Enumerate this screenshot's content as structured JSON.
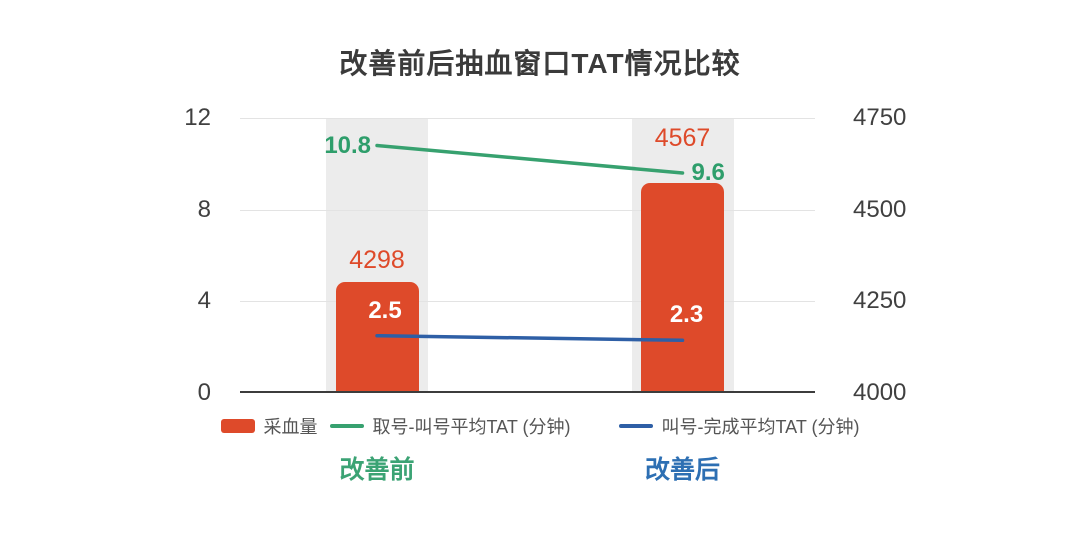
{
  "title": "改善前后抽血窗口TAT情况比较",
  "legend": [
    {
      "label": "采血量",
      "type": "bar",
      "color": "#de4a2a"
    },
    {
      "label": "取号-叫号平均TAT (分钟)",
      "type": "line",
      "color": "#37a16f"
    },
    {
      "label": "叫号-完成平均TAT (分钟)",
      "type": "line",
      "color": "#2e5fa6"
    }
  ],
  "chart_data": {
    "type": "bar+line combo, dual axis",
    "categories": [
      "改善前",
      "改善后"
    ],
    "category_colors": [
      "#3ba374",
      "#2d6fb3"
    ],
    "series": [
      {
        "name": "采血量",
        "type": "bar",
        "axis": "right",
        "values": [
          4298,
          4567
        ],
        "color": "#de4a2a",
        "label_color": "#de4a2a"
      },
      {
        "name": "取号-叫号平均TAT (分钟)",
        "type": "line",
        "axis": "left",
        "values": [
          10.8,
          9.6
        ],
        "color": "#37a16f",
        "label_color": "#2e9e6b"
      },
      {
        "name": "叫号-完成平均TAT (分钟)",
        "type": "line",
        "axis": "left",
        "values": [
          2.5,
          2.3
        ],
        "color": "#2e5fa6",
        "label_color": "#ffffff"
      }
    ],
    "left_axis": {
      "min": 0,
      "max": 12,
      "ticks": [
        12,
        8,
        4,
        0
      ]
    },
    "right_axis": {
      "min": 4000,
      "max": 4750,
      "ticks": [
        4750,
        4500,
        4250,
        4000
      ]
    },
    "grid": true,
    "band_color": "#ececec",
    "legend_position": "bottom",
    "title": "改善前后抽血窗口TAT情况比较"
  }
}
